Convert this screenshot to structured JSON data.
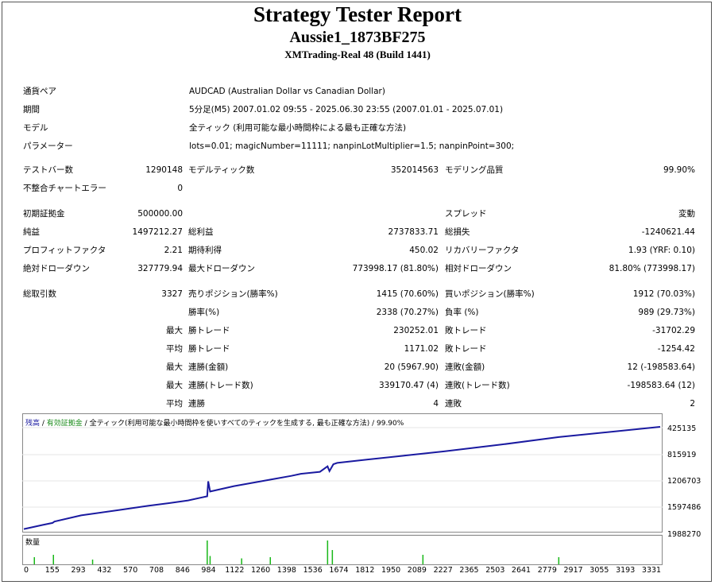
{
  "header": {
    "title": "Strategy Tester Report",
    "ea_name": "Aussie1_1873BF275",
    "server": "XMTrading-Real 48 (Build 1441)"
  },
  "info": [
    {
      "label": "通貨ペア",
      "value": "AUDCAD (Australian Dollar vs Canadian Dollar)"
    },
    {
      "label": "期間",
      "value": "5分足(M5) 2007.01.02 09:55 - 2025.06.30 23:55 (2007.01.01 - 2025.07.01)"
    },
    {
      "label": "モデル",
      "value": "全ティック (利用可能な最小時間枠による最も正確な方法)"
    },
    {
      "label": "パラメーター",
      "value": "lots=0.01; magicNumber=11111; nanpinLotMultiplier=1.5; nanpinPoint=300;"
    }
  ],
  "rows": [
    {
      "c1l": "テストバー数",
      "c1v": "1290148",
      "c2l": "モデルティック数",
      "c2v": "352014563",
      "c3l": "モデリング品質",
      "c3v": "99.90%"
    },
    {
      "c1l": "不整合チャートエラー",
      "c1v": "0",
      "c2l": "",
      "c2v": "",
      "c3l": "",
      "c3v": ""
    },
    {
      "c1l": "初期証拠金",
      "c1v": "500000.00",
      "c2l": "",
      "c2v": "",
      "c3l": "スプレッド",
      "c3v": "変動"
    },
    {
      "c1l": "純益",
      "c1v": "1497212.27",
      "c2l": "総利益",
      "c2v": "2737833.71",
      "c3l": "総損失",
      "c3v": "-1240621.44"
    },
    {
      "c1l": "プロフィットファクタ",
      "c1v": "2.21",
      "c2l": "期待利得",
      "c2v": "450.02",
      "c3l": "リカバリーファクタ",
      "c3v": "1.93 (YRF: 0.10)"
    },
    {
      "c1l": "絶対ドローダウン",
      "c1v": "327779.94",
      "c2l": "最大ドローダウン",
      "c2v": "773998.17 (81.80%)",
      "c3l": "相対ドローダウン",
      "c3v": "81.80% (773998.17)"
    },
    {
      "c1l": "総取引数",
      "c1v": "3327",
      "c2l": "売りポジション(勝率%)",
      "c2v": "1415 (70.60%)",
      "c3l": "買いポジション(勝率%)",
      "c3v": "1912 (70.03%)"
    },
    {
      "c1l": "",
      "c1v": "",
      "c2l": "勝率(%)",
      "c2v": "2338 (70.27%)",
      "c3l": "負率 (%)",
      "c3v": "989 (29.73%)"
    },
    {
      "c1l": "",
      "c1v": "最大",
      "c2l": "勝トレード",
      "c2v": "230252.01",
      "c3l": "敗トレード",
      "c3v": "-31702.29"
    },
    {
      "c1l": "",
      "c1v": "平均",
      "c2l": "勝トレード",
      "c2v": "1171.02",
      "c3l": "敗トレード",
      "c3v": "-1254.42"
    },
    {
      "c1l": "",
      "c1v": "最大",
      "c2l": "連勝(金額)",
      "c2v": "20 (5967.90)",
      "c3l": "連敗(金額)",
      "c3v": "12 (-198583.64)"
    },
    {
      "c1l": "",
      "c1v": "最大",
      "c2l": "連勝(トレード数)",
      "c2v": "339170.47 (4)",
      "c3l": "連敗(トレード数)",
      "c3v": "-198583.64 (12)"
    },
    {
      "c1l": "",
      "c1v": "平均",
      "c2l": "連勝",
      "c2v": "4",
      "c3l": "連敗",
      "c3v": "2"
    }
  ],
  "legend": {
    "balance": "残高",
    "sep1": " / ",
    "equity": "有効証拠金",
    "sep2": " / ",
    "rest": "全ティック(利用可能な最小時間枠を使いすべてのティックを生成する, 最も正確な方法) / 99.90%"
  },
  "volume_label": "数量",
  "colors": {
    "balance": "#1a1aa0",
    "equity": "#1a8a1a",
    "volume": "#18b818"
  },
  "chart_data": {
    "type": "line",
    "xlabel": "",
    "ylabel": "",
    "x_ticks": [
      "0",
      "155",
      "293",
      "432",
      "570",
      "708",
      "846",
      "984",
      "1122",
      "1260",
      "1398",
      "1536",
      "1674",
      "1812",
      "1950",
      "2089",
      "2227",
      "2365",
      "2503",
      "2641",
      "2779",
      "2917",
      "3055",
      "3193",
      "3331"
    ],
    "y_ticks": [
      "425135",
      "815919",
      "1206703",
      "1597486",
      "1988270"
    ],
    "ylim": [
      425135,
      1988270
    ],
    "xlim": [
      0,
      3331
    ],
    "series": [
      {
        "name": "残高",
        "x": [
          0,
          100,
          150,
          160,
          300,
          500,
          650,
          760,
          860,
          960,
          965,
          975,
          1100,
          1300,
          1400,
          1450,
          1550,
          1590,
          1600,
          1620,
          1640,
          1800,
          2000,
          2200,
          2500,
          2800,
          3331
        ],
        "values": [
          500000,
          560000,
          590000,
          610000,
          700000,
          780000,
          840000,
          880000,
          920000,
          980000,
          1200000,
          1050000,
          1130000,
          1230000,
          1280000,
          1310000,
          1340000,
          1420000,
          1350000,
          1450000,
          1470000,
          1520000,
          1580000,
          1640000,
          1740000,
          1850000,
          2000000
        ]
      }
    ],
    "volume": {
      "x": [
        55,
        155,
        360,
        960,
        975,
        1140,
        1290,
        1590,
        1615,
        2089,
        2800
      ],
      "values": [
        0.3,
        0.4,
        0.2,
        1.0,
        0.35,
        0.25,
        0.3,
        1.0,
        0.6,
        0.4,
        0.3
      ]
    }
  }
}
